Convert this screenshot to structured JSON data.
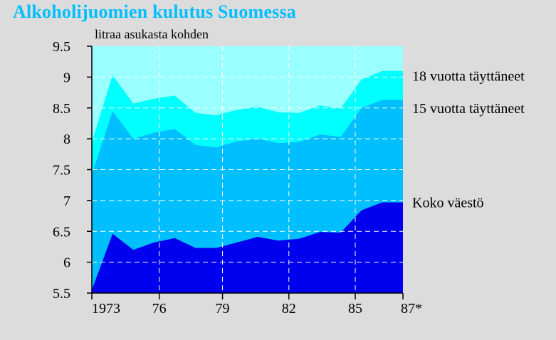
{
  "title": "Alkoholijuomien kulutus Suomessa",
  "chart_data": {
    "type": "area",
    "ylabel": "litraa asukasta kohden",
    "ylim": [
      5.5,
      9.5
    ],
    "yticks": [
      "5.5",
      "6",
      "6.5",
      "7",
      "7.5",
      "8",
      "8.5",
      "9",
      "9.5"
    ],
    "xlim": [
      1972,
      1987
    ],
    "xtick_positions": [
      1972,
      1975.25,
      1978.3,
      1981.5,
      1984.7,
      1987
    ],
    "xticks": [
      "1973",
      "76",
      "79",
      "82",
      "85",
      "87*"
    ],
    "grid": true,
    "x": [
      1972,
      1973,
      1974,
      1975,
      1976,
      1977,
      1978,
      1979,
      1980,
      1981,
      1982,
      1983,
      1984,
      1985,
      1986,
      1987
    ],
    "series": [
      {
        "name": "18 vuotta täyttäneet",
        "color": "#00ffff",
        "values": [
          7.95,
          9.03,
          8.57,
          8.65,
          8.7,
          8.42,
          8.38,
          8.47,
          8.52,
          8.43,
          8.42,
          8.54,
          8.49,
          8.96,
          9.1,
          9.1
        ]
      },
      {
        "name": "15 vuotta täyttäneet",
        "color": "#00bfff",
        "values": [
          7.42,
          8.45,
          8.0,
          8.1,
          8.16,
          7.9,
          7.86,
          7.96,
          8.0,
          7.93,
          7.95,
          8.07,
          8.03,
          8.5,
          8.63,
          8.63
        ]
      },
      {
        "name": "Koko väestö",
        "color": "#0000ee",
        "values": [
          5.55,
          6.46,
          6.2,
          6.32,
          6.39,
          6.23,
          6.23,
          6.32,
          6.41,
          6.35,
          6.38,
          6.49,
          6.48,
          6.84,
          6.97,
          6.97
        ]
      }
    ],
    "plot_background": "#99ffff"
  }
}
